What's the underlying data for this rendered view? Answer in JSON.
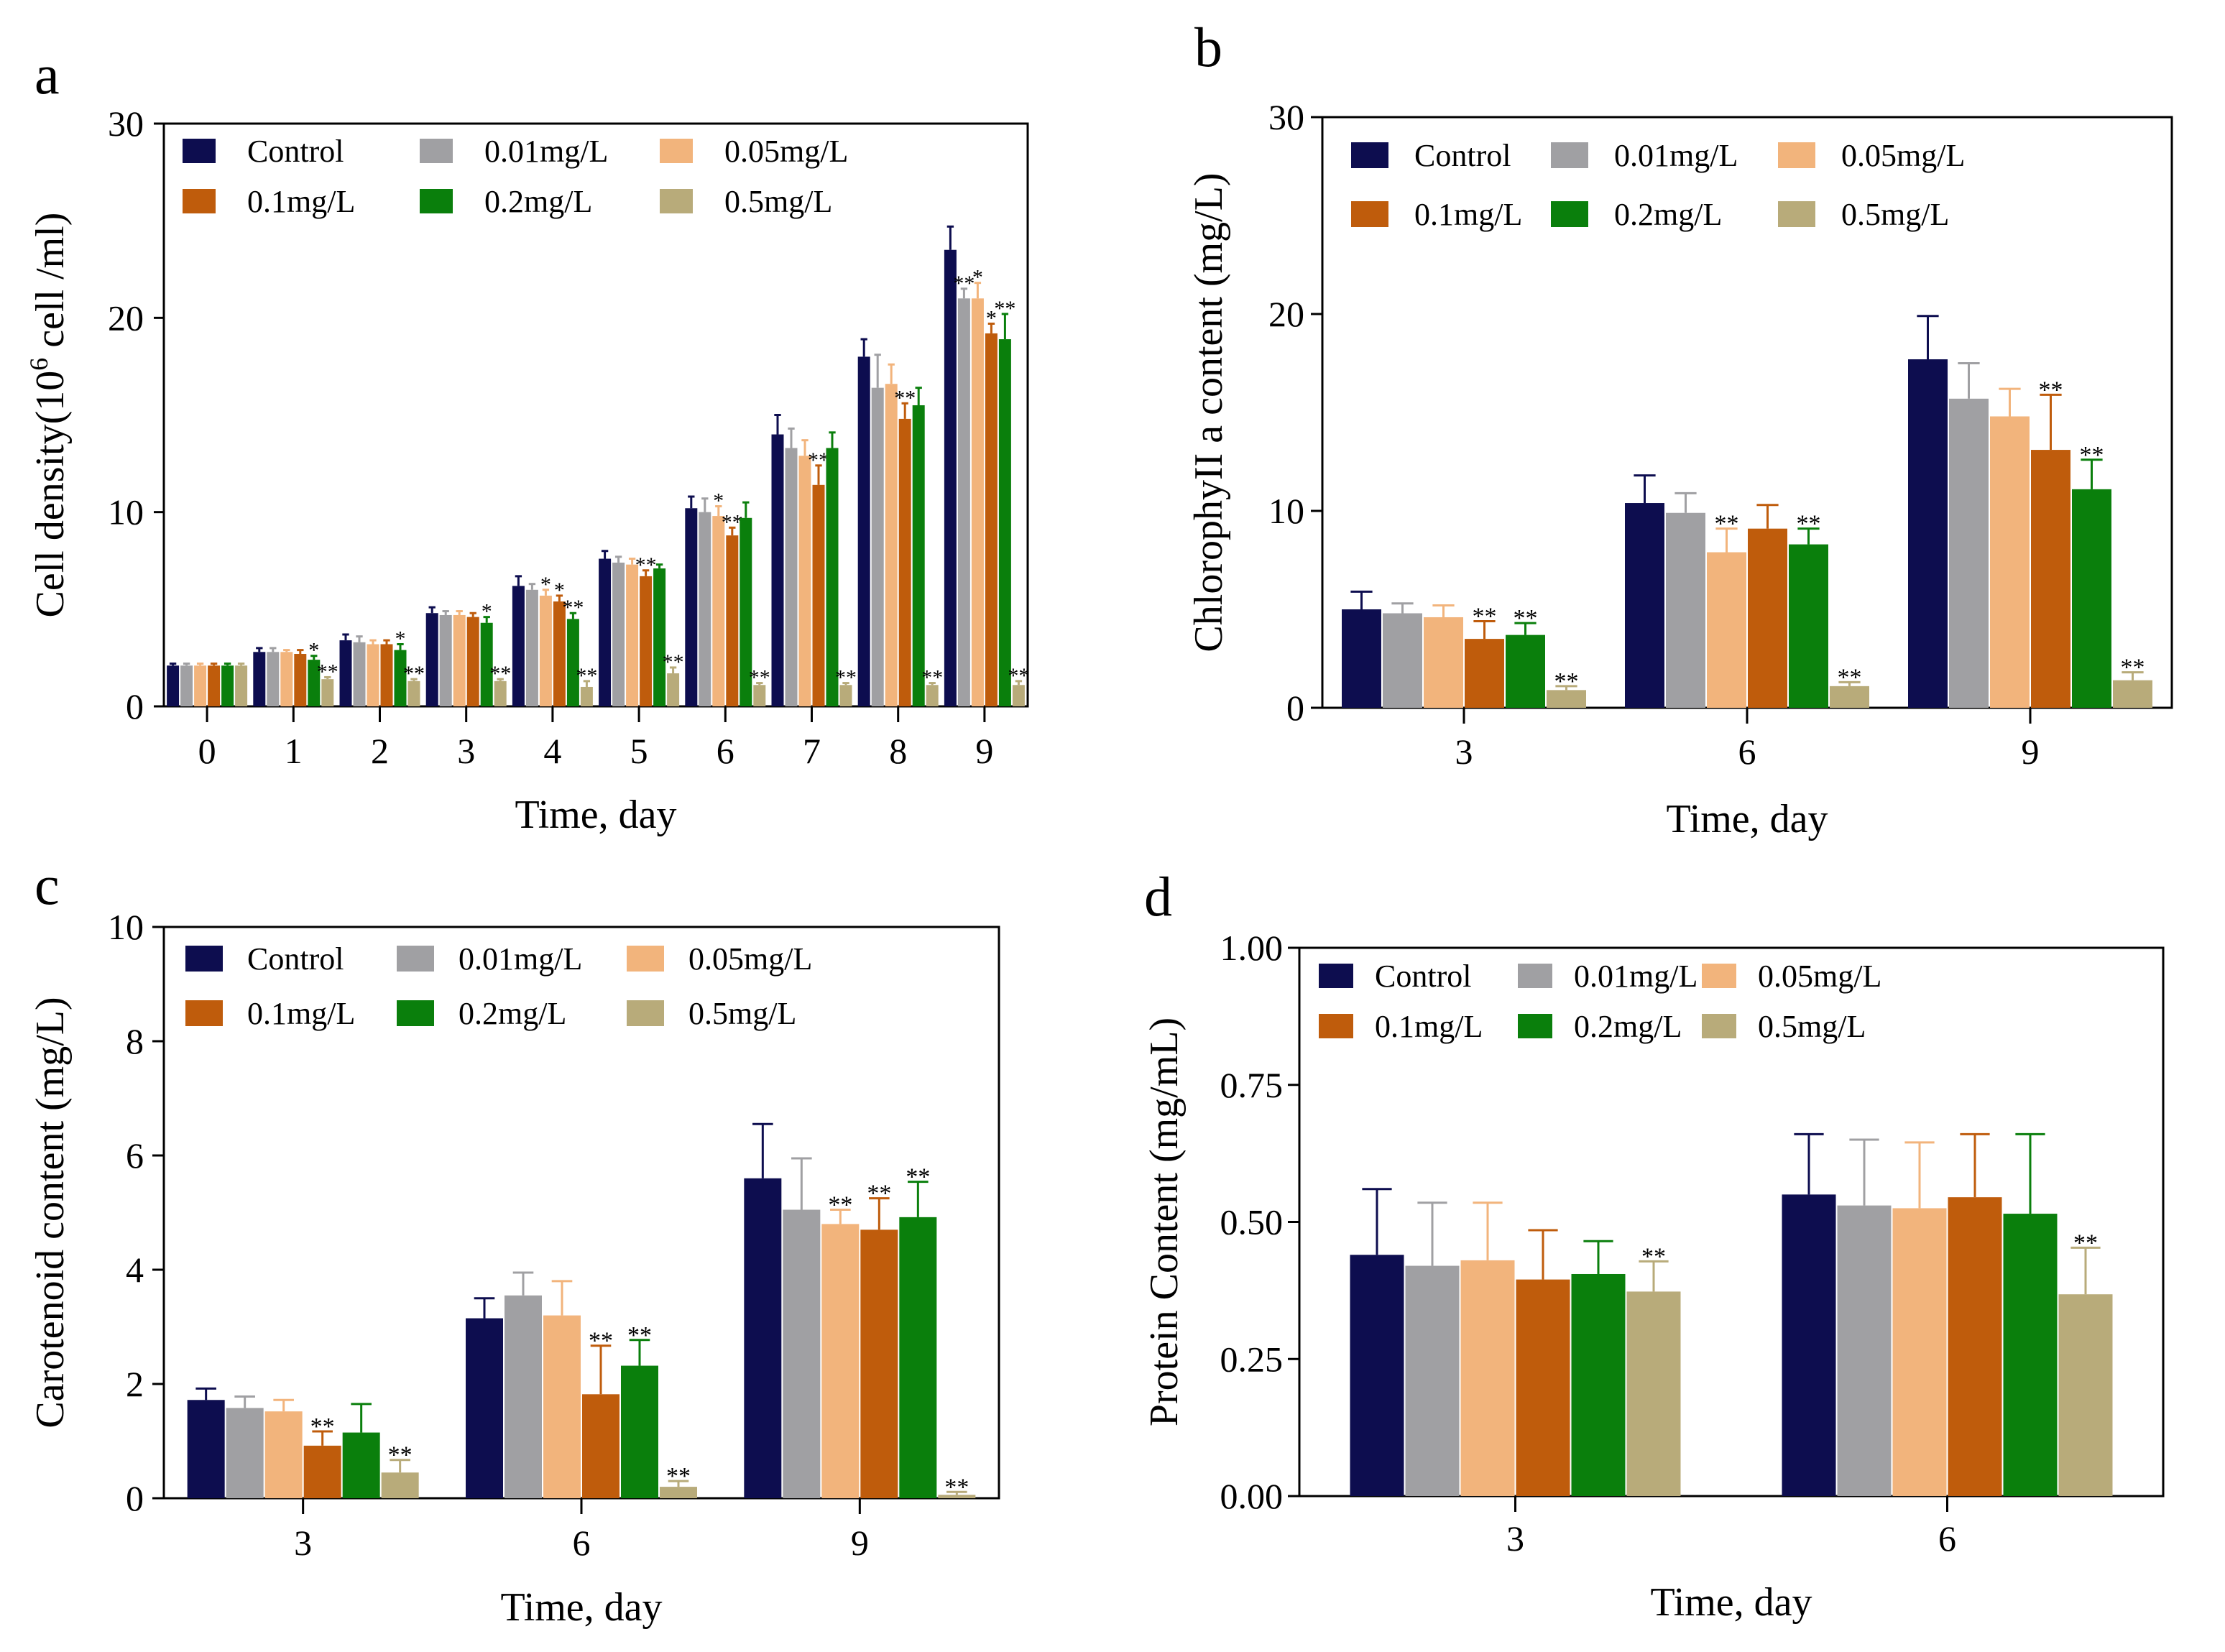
{
  "colors": {
    "Control": "#0d0d4f",
    "0.01mg/L": "#a0a0a3",
    "0.05mg/L": "#f2b47c",
    "0.1mg/L": "#bf5c0c",
    "0.2mg/L": "#0a7f0c",
    "0.5mg/L": "#b8ab7a"
  },
  "chart_data": [
    {
      "panel": "a",
      "type": "bar",
      "title": "",
      "xlabel": "Time, day",
      "ylabel_main": "Cell density(10",
      "ylabel_sup": "6",
      "ylabel_tail": " cell /ml)",
      "ylim": [
        0,
        30
      ],
      "yticks": [
        "0",
        "10",
        "20",
        "30"
      ],
      "categories": [
        "0",
        "1",
        "2",
        "3",
        "4",
        "5",
        "6",
        "7",
        "8",
        "9"
      ],
      "legend": [
        "Control",
        "0.01mg/L",
        "0.05mg/L",
        "0.1mg/L",
        "0.2mg/L",
        "0.5mg/L"
      ],
      "series": [
        {
          "name": "Control",
          "values": [
            2.1,
            2.8,
            3.4,
            4.8,
            6.2,
            7.6,
            10.2,
            14.0,
            18.0,
            23.5
          ],
          "errors": [
            0.1,
            0.2,
            0.3,
            0.3,
            0.5,
            0.4,
            0.6,
            1.0,
            0.9,
            1.2
          ],
          "sig": [
            "",
            "",
            "",
            "",
            "",
            "",
            "",
            "",
            "",
            ""
          ]
        },
        {
          "name": "0.01mg/L",
          "values": [
            2.1,
            2.8,
            3.3,
            4.7,
            6.0,
            7.4,
            10.0,
            13.3,
            16.4,
            21.0
          ],
          "errors": [
            0.1,
            0.2,
            0.3,
            0.2,
            0.3,
            0.3,
            0.7,
            1.0,
            1.7,
            0.5
          ],
          "sig": [
            "",
            "",
            "",
            "",
            "",
            "",
            "",
            "",
            "",
            "**"
          ]
        },
        {
          "name": "0.05mg/L",
          "values": [
            2.1,
            2.8,
            3.2,
            4.7,
            5.7,
            7.3,
            9.8,
            12.9,
            16.6,
            21.0
          ],
          "errors": [
            0.1,
            0.1,
            0.2,
            0.2,
            0.3,
            0.3,
            0.5,
            0.8,
            1.0,
            0.8
          ],
          "sig": [
            "",
            "",
            "",
            "",
            "*",
            "",
            "*",
            "",
            "",
            "*"
          ]
        },
        {
          "name": "0.1mg/L",
          "values": [
            2.1,
            2.7,
            3.2,
            4.6,
            5.4,
            6.7,
            8.8,
            11.4,
            14.8,
            19.2
          ],
          "errors": [
            0.1,
            0.2,
            0.2,
            0.2,
            0.3,
            0.3,
            0.4,
            1.0,
            0.8,
            0.5
          ],
          "sig": [
            "",
            "",
            "",
            "",
            "*",
            "**",
            "**",
            "**",
            "**",
            "*"
          ]
        },
        {
          "name": "0.2mg/L",
          "values": [
            2.1,
            2.4,
            2.9,
            4.3,
            4.5,
            7.1,
            9.7,
            13.3,
            15.5,
            18.9
          ],
          "errors": [
            0.1,
            0.2,
            0.3,
            0.3,
            0.3,
            0.2,
            0.8,
            0.8,
            0.9,
            1.3
          ],
          "sig": [
            "",
            "*",
            "*",
            "*",
            "**",
            "",
            "",
            "",
            "",
            "**"
          ]
        },
        {
          "name": "0.5mg/L",
          "values": [
            2.1,
            1.4,
            1.3,
            1.3,
            1.0,
            1.7,
            1.1,
            1.1,
            1.1,
            1.1
          ],
          "errors": [
            0.1,
            0.1,
            0.1,
            0.1,
            0.3,
            0.3,
            0.1,
            0.1,
            0.1,
            0.2
          ],
          "sig": [
            "",
            "**",
            "**",
            "**",
            "**",
            "**",
            "**",
            "**",
            "**",
            "**"
          ]
        }
      ]
    },
    {
      "panel": "b",
      "type": "bar",
      "title": "",
      "xlabel": "Time, day",
      "ylabel": "ChlorophyII a content (mg/L)",
      "ylim": [
        0,
        30
      ],
      "yticks": [
        "0",
        "10",
        "20",
        "30"
      ],
      "categories": [
        "3",
        "6",
        "9"
      ],
      "legend": [
        "Control",
        "0.01mg/L",
        "0.05mg/L",
        "0.1mg/L",
        "0.2mg/L",
        "0.5mg/L"
      ],
      "series": [
        {
          "name": "Control",
          "values": [
            5.0,
            10.4,
            17.7
          ],
          "errors": [
            0.9,
            1.4,
            2.2
          ],
          "sig": [
            "",
            "",
            ""
          ]
        },
        {
          "name": "0.01mg/L",
          "values": [
            4.8,
            9.9,
            15.7
          ],
          "errors": [
            0.5,
            1.0,
            1.8
          ],
          "sig": [
            "",
            "",
            ""
          ]
        },
        {
          "name": "0.05mg/L",
          "values": [
            4.6,
            7.9,
            14.8
          ],
          "errors": [
            0.6,
            1.2,
            1.4
          ],
          "sig": [
            "",
            "**",
            ""
          ]
        },
        {
          "name": "0.1mg/L",
          "values": [
            3.5,
            9.1,
            13.1
          ],
          "errors": [
            0.9,
            1.2,
            2.8
          ],
          "sig": [
            "**",
            "",
            "**"
          ]
        },
        {
          "name": "0.2mg/L",
          "values": [
            3.7,
            8.3,
            11.1
          ],
          "errors": [
            0.6,
            0.8,
            1.5
          ],
          "sig": [
            "**",
            "**",
            "**"
          ]
        },
        {
          "name": "0.5mg/L",
          "values": [
            0.9,
            1.1,
            1.4
          ],
          "errors": [
            0.2,
            0.2,
            0.4
          ],
          "sig": [
            "**",
            "**",
            "**"
          ]
        }
      ]
    },
    {
      "panel": "c",
      "type": "bar",
      "title": "",
      "xlabel": "Time, day",
      "ylabel": "Carotenoid content (mg/L)",
      "ylim": [
        0,
        10
      ],
      "yticks": [
        "0",
        "2",
        "4",
        "6",
        "8",
        "10"
      ],
      "categories": [
        "3",
        "6",
        "9"
      ],
      "legend": [
        "Control",
        "0.01mg/L",
        "0.05mg/L",
        "0.1mg/L",
        "0.2mg/L",
        "0.5mg/L"
      ],
      "series": [
        {
          "name": "Control",
          "values": [
            1.72,
            3.15,
            5.6
          ],
          "errors": [
            0.2,
            0.35,
            0.95
          ],
          "sig": [
            "",
            "",
            ""
          ]
        },
        {
          "name": "0.01mg/L",
          "values": [
            1.58,
            3.55,
            5.05
          ],
          "errors": [
            0.2,
            0.4,
            0.9
          ],
          "sig": [
            "",
            "",
            ""
          ]
        },
        {
          "name": "0.05mg/L",
          "values": [
            1.52,
            3.2,
            4.8
          ],
          "errors": [
            0.2,
            0.6,
            0.25
          ],
          "sig": [
            "",
            "",
            "**"
          ]
        },
        {
          "name": "0.1mg/L",
          "values": [
            0.92,
            1.82,
            4.7
          ],
          "errors": [
            0.25,
            0.85,
            0.55
          ],
          "sig": [
            "**",
            "**",
            "**"
          ]
        },
        {
          "name": "0.2mg/L",
          "values": [
            1.15,
            2.32,
            4.92
          ],
          "errors": [
            0.5,
            0.45,
            0.62
          ],
          "sig": [
            "",
            "**",
            "**"
          ]
        },
        {
          "name": "0.5mg/L",
          "values": [
            0.45,
            0.2,
            0.06
          ],
          "errors": [
            0.22,
            0.1,
            0.05
          ],
          "sig": [
            "**",
            "**",
            "**"
          ]
        }
      ]
    },
    {
      "panel": "d",
      "type": "bar",
      "title": "",
      "xlabel": "Time, day",
      "ylabel": "Protein Content (mg/mL)",
      "ylim": [
        0,
        1
      ],
      "yticks": [
        "0.00",
        "0.25",
        "0.50",
        "0.75",
        "1.00"
      ],
      "categories": [
        "3",
        "6"
      ],
      "legend": [
        "Control",
        "0.01mg/L",
        "0.05mg/L",
        "0.1mg/L",
        "0.2mg/L",
        "0.5mg/L"
      ],
      "series": [
        {
          "name": "Control",
          "values": [
            0.44,
            0.55
          ],
          "errors": [
            0.12,
            0.11
          ],
          "sig": [
            "",
            ""
          ]
        },
        {
          "name": "0.01mg/L",
          "values": [
            0.42,
            0.53
          ],
          "errors": [
            0.115,
            0.12
          ],
          "sig": [
            "",
            ""
          ]
        },
        {
          "name": "0.05mg/L",
          "values": [
            0.43,
            0.525
          ],
          "errors": [
            0.105,
            0.12
          ],
          "sig": [
            "",
            ""
          ]
        },
        {
          "name": "0.1mg/L",
          "values": [
            0.395,
            0.545
          ],
          "errors": [
            0.09,
            0.115
          ],
          "sig": [
            "",
            ""
          ]
        },
        {
          "name": "0.2mg/L",
          "values": [
            0.405,
            0.515
          ],
          "errors": [
            0.06,
            0.145
          ],
          "sig": [
            "",
            ""
          ]
        },
        {
          "name": "0.5mg/L",
          "values": [
            0.373,
            0.368
          ],
          "errors": [
            0.055,
            0.085
          ],
          "sig": [
            "**",
            "**"
          ]
        }
      ]
    }
  ]
}
